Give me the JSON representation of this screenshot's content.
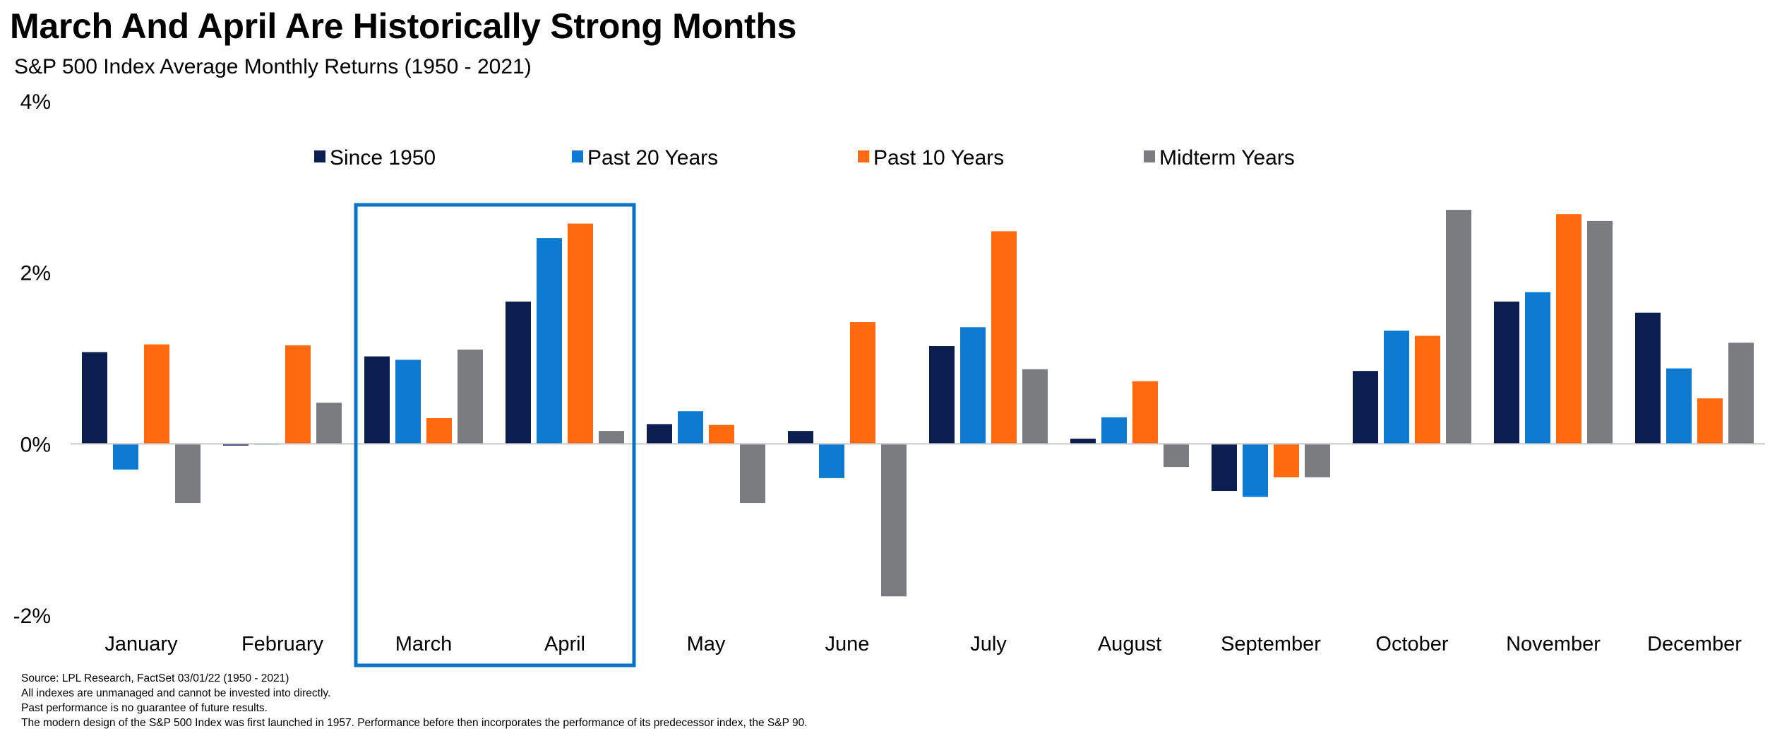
{
  "title": "March And April Are Historically Strong Months",
  "subtitle": "S&P 500 Index Average Monthly Returns (1950 - 2021)",
  "footnotes": [
    "Source: LPL Research, FactSet 03/01/22  (1950 - 2021)",
    "All indexes are unmanaged  and cannot be invested  into directly.",
    "Past performance is no guarantee of future results.",
    "The modern design of the S&P 500 Index was first launched  in 1957. Performance before then incorporates the performance of its  predecessor index, the S&P 90."
  ],
  "highlight": {
    "categories": [
      "March",
      "April"
    ],
    "color": "#0B72C4"
  },
  "chart_data": {
    "type": "bar",
    "categories": [
      "January",
      "February",
      "March",
      "April",
      "May",
      "June",
      "July",
      "August",
      "September",
      "October",
      "November",
      "December"
    ],
    "series": [
      {
        "name": "Since 1950",
        "color": "#0C1E4F",
        "values": [
          1.07,
          -0.02,
          1.02,
          1.66,
          0.23,
          0.15,
          1.14,
          0.06,
          -0.55,
          0.85,
          1.66,
          1.53
        ]
      },
      {
        "name": "Past 20 Years",
        "color": "#0B7AD0",
        "values": [
          -0.3,
          -0.01,
          0.98,
          2.4,
          0.38,
          -0.4,
          1.36,
          0.31,
          -0.62,
          1.32,
          1.77,
          0.88
        ]
      },
      {
        "name": "Past 10 Years",
        "color": "#FF6A0E",
        "values": [
          1.16,
          1.15,
          0.3,
          2.57,
          0.22,
          1.42,
          2.48,
          0.73,
          -0.39,
          1.26,
          2.68,
          0.53
        ]
      },
      {
        "name": "Midterm Years",
        "color": "#7A7C80",
        "values": [
          -0.69,
          0.48,
          1.1,
          0.15,
          -0.69,
          -1.78,
          0.87,
          -0.27,
          -0.39,
          2.73,
          2.6,
          1.18
        ]
      }
    ],
    "yticks": [
      "4%",
      "2%",
      "0%",
      "-2%"
    ],
    "ylim": [
      -2,
      4
    ],
    "xlabel": "",
    "ylabel": "",
    "legend_position": "top"
  }
}
